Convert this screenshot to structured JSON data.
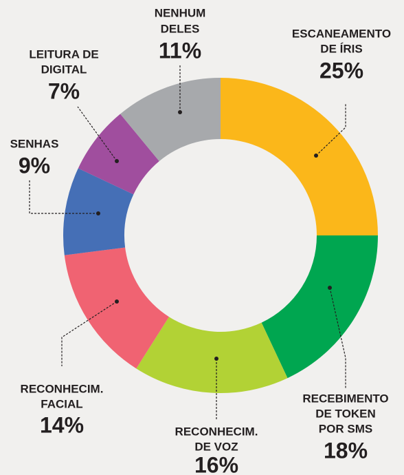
{
  "chart_data": {
    "type": "donut",
    "categories": [
      [
        "ESCANEAMENTO",
        "DE ÍRIS"
      ],
      [
        "RECEBIMENTO",
        "DE TOKEN",
        "POR SMS"
      ],
      [
        "RECONHECIM.",
        "DE VOZ"
      ],
      [
        "RECONHECIM.",
        "FACIAL"
      ],
      [
        "SENHAS"
      ],
      [
        "LEITURA DE",
        "DIGITAL"
      ],
      [
        "NENHUM",
        "DELES"
      ]
    ],
    "values": [
      25,
      18,
      16,
      14,
      9,
      7,
      11
    ],
    "value_labels": [
      "25%",
      "18%",
      "16%",
      "14%",
      "9%",
      "7%",
      "11%"
    ],
    "colors": [
      "#fbb71a",
      "#00a650",
      "#b2d235",
      "#f06372",
      "#456fb6",
      "#a04e9e",
      "#a7a9ac"
    ]
  }
}
